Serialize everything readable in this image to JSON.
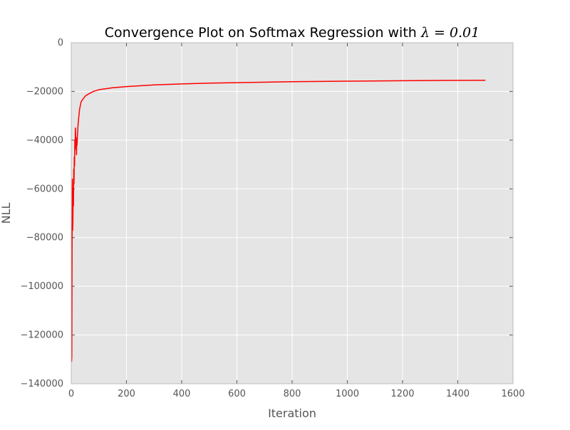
{
  "chart_data": {
    "type": "line",
    "title": "Convergence Plot on Softmax Regression with ",
    "title_math": "λ = 0.01",
    "xlabel": "Iteration",
    "ylabel": "NLL",
    "xlim": [
      0,
      1600
    ],
    "ylim": [
      -140000,
      0
    ],
    "xticks": [
      0,
      200,
      400,
      600,
      800,
      1000,
      1200,
      1400,
      1600
    ],
    "yticks": [
      0,
      -20000,
      -40000,
      -60000,
      -80000,
      -100000,
      -120000,
      -140000
    ],
    "xtick_labels": [
      "0",
      "200",
      "400",
      "600",
      "800",
      "1000",
      "1200",
      "1400",
      "1600"
    ],
    "ytick_labels": [
      "0",
      "−20000",
      "−40000",
      "−60000",
      "−80000",
      "−100000",
      "−120000",
      "−140000"
    ],
    "grid": true,
    "colors": {
      "line": "#ff0000",
      "plot_background": "#e5e5e5",
      "grid": "#ffffff"
    },
    "series": [
      {
        "x": [
          1,
          2,
          3,
          4,
          5,
          6,
          7,
          8,
          9,
          10,
          11,
          12,
          13,
          14,
          15,
          16,
          17,
          18,
          19,
          20,
          21,
          22,
          25,
          30,
          35,
          40,
          50,
          60,
          80,
          100,
          150,
          200,
          300,
          400,
          500,
          600,
          800,
          1000,
          1200,
          1400,
          1500
        ],
        "y": [
          -131000,
          -129000,
          -85000,
          -56000,
          -77000,
          -73000,
          -60000,
          -67000,
          -52000,
          -58000,
          -47000,
          -50500,
          -40000,
          -44000,
          -35000,
          -38000,
          -43000,
          -40000,
          -46000,
          -39000,
          -42000,
          -39000,
          -33000,
          -27500,
          -24500,
          -23500,
          -22000,
          -21200,
          -20000,
          -19300,
          -18500,
          -18000,
          -17300,
          -16900,
          -16600,
          -16400,
          -16000,
          -15800,
          -15600,
          -15450,
          -15400
        ]
      }
    ]
  }
}
